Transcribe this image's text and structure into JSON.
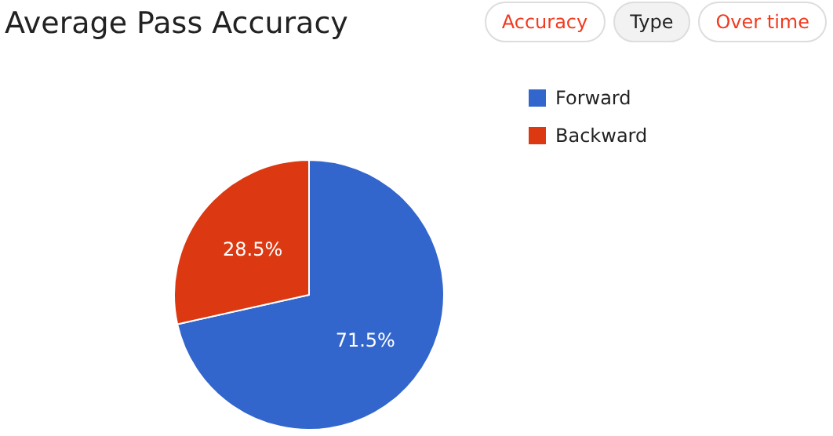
{
  "chart_data": {
    "type": "pie",
    "title": "Average Pass Accuracy",
    "annotations": [
      "Accuracy",
      "Type",
      "Over time"
    ],
    "categories": [
      "Forward",
      "Backward"
    ],
    "values": [
      71.5,
      28.5
    ],
    "value_labels": [
      "71.5%",
      "28.5%"
    ],
    "colors": [
      "#3366cc",
      "#dc3912"
    ],
    "legend": "right"
  }
}
